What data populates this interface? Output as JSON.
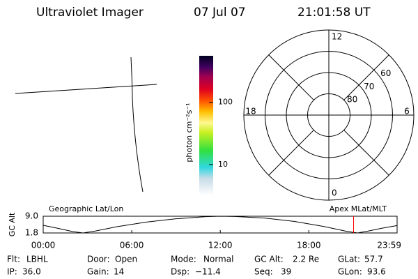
{
  "header": {
    "title": "Ultraviolet Imager",
    "date": "07 Jul 07",
    "time": "21:01:58 UT"
  },
  "colorbar": {
    "label": "photon cm⁻²s⁻¹",
    "log": true,
    "ylim": [
      3.2,
      560
    ],
    "yticks": [
      10,
      100
    ]
  },
  "polar": {
    "rlim": [
      90,
      50
    ],
    "rticks": [
      60,
      70,
      80
    ],
    "mlt_ticks": [
      12,
      6,
      0,
      18
    ]
  },
  "altitude": {
    "ylabel": "GC Alt",
    "left_label": "Geographic Lat/Lon",
    "right_label": "Apex MLat/MLT",
    "ylim": [
      1.8,
      9.0
    ],
    "yticks": [
      {
        "value": 9.0,
        "label": "9.0"
      },
      1.8
    ],
    "xlim": [
      0,
      23.983
    ],
    "xticks": [
      {
        "value": 0,
        "label": "00:00"
      },
      {
        "value": 6,
        "label": "06:00"
      },
      {
        "value": 12,
        "label": "12:00"
      },
      {
        "value": 18,
        "label": "18:00"
      },
      {
        "value": 23.983,
        "label": "23:59"
      }
    ],
    "x": [
      0,
      1,
      2,
      2.7,
      3.5,
      5,
      7,
      9,
      11,
      12,
      13,
      15,
      17,
      19,
      20.5,
      21.3,
      22,
      23,
      23.983
    ],
    "values": [
      5.1,
      3.8,
      2.4,
      1.8,
      2.6,
      4.5,
      6.5,
      7.9,
      8.8,
      9.0,
      8.9,
      8.2,
      6.8,
      4.6,
      2.6,
      1.8,
      2.6,
      3.9,
      5.0
    ],
    "current_time": 21.033,
    "marker_color": "#ff0000"
  },
  "footer": {
    "rows": [
      [
        {
          "label": "Flt:",
          "value": "LBHL"
        },
        {
          "label": "Door:",
          "value": "Open"
        },
        {
          "label": "Mode:",
          "value": "Normal"
        },
        {
          "label": "GC Alt:",
          "value": "2.2 Re"
        },
        {
          "label": "GLat:",
          "value": "57.7"
        }
      ],
      [
        {
          "label": "IP:",
          "value": "36.0"
        },
        {
          "label": "Gain:",
          "value": "14"
        },
        {
          "label": "Dsp:",
          "value": "−11.4"
        },
        {
          "label": "Seq:",
          "value": "39"
        },
        {
          "label": "GLon:",
          "value": "93.6"
        }
      ]
    ]
  }
}
